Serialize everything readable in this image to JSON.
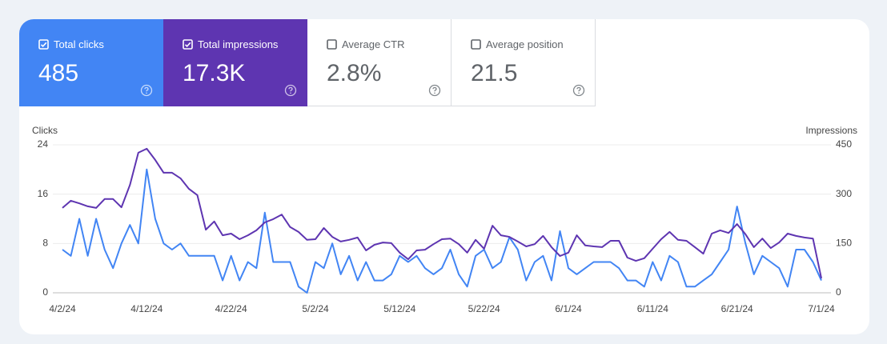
{
  "metrics": [
    {
      "label": "Total clicks",
      "value": "485",
      "checked": true,
      "color": "#4285f4"
    },
    {
      "label": "Total impressions",
      "value": "17.3K",
      "checked": true,
      "color": "#5e35b1"
    },
    {
      "label": "Average CTR",
      "value": "2.8%",
      "checked": false
    },
    {
      "label": "Average position",
      "value": "21.5",
      "checked": false
    }
  ],
  "chart_data": {
    "type": "line",
    "ylabel": "Clicks",
    "y2label": "Impressions",
    "categories": [
      "4/2/24",
      null,
      null,
      null,
      null,
      null,
      null,
      null,
      null,
      null,
      "4/12/24",
      null,
      null,
      null,
      null,
      null,
      null,
      null,
      null,
      null,
      "4/22/24",
      null,
      null,
      null,
      null,
      null,
      null,
      null,
      null,
      null,
      "5/2/24",
      null,
      null,
      null,
      null,
      null,
      null,
      null,
      null,
      null,
      "5/12/24",
      null,
      null,
      null,
      null,
      null,
      null,
      null,
      null,
      null,
      "5/22/24",
      null,
      null,
      null,
      null,
      null,
      null,
      null,
      null,
      null,
      "6/1/24",
      null,
      null,
      null,
      null,
      null,
      null,
      null,
      null,
      null,
      "6/11/24",
      null,
      null,
      null,
      null,
      null,
      null,
      null,
      null,
      null,
      "6/21/24",
      null,
      null,
      null,
      null,
      null,
      null,
      null,
      null,
      null,
      "7/1/24"
    ],
    "ylim": [
      0,
      24
    ],
    "yticks": [
      0,
      8,
      16,
      24
    ],
    "y2lim": [
      0,
      450
    ],
    "y2ticks": [
      0,
      150,
      300,
      450
    ],
    "grid": true,
    "series": [
      {
        "color": "#4285f4",
        "values": [
          7,
          6,
          12,
          6,
          12,
          7,
          4,
          8,
          11,
          8,
          20,
          12,
          8,
          7,
          8,
          6,
          6,
          6,
          6,
          2,
          6,
          2,
          5,
          4,
          13,
          5,
          5,
          5,
          1,
          0,
          5,
          4,
          8,
          3,
          6,
          2,
          5,
          2,
          2,
          3,
          6,
          5,
          6,
          4,
          3,
          4,
          7,
          3,
          1,
          6,
          7,
          4,
          5,
          9,
          7,
          2,
          5,
          6,
          2,
          10,
          4,
          3,
          4,
          5,
          5,
          5,
          4,
          2,
          2,
          1,
          5,
          2,
          6,
          5,
          1,
          1,
          2,
          3,
          5,
          7,
          14,
          8,
          3,
          6,
          5,
          4,
          1,
          7,
          7,
          5,
          2
        ]
      },
      {
        "color": "#5e35b1",
        "axis": "y2",
        "values": [
          258,
          280,
          272,
          263,
          258,
          285,
          285,
          260,
          328,
          426,
          438,
          404,
          365,
          365,
          348,
          316,
          297,
          192,
          217,
          175,
          180,
          163,
          175,
          190,
          214,
          224,
          238,
          200,
          185,
          161,
          163,
          197,
          170,
          156,
          161,
          168,
          129,
          146,
          153,
          151,
          122,
          102,
          129,
          131,
          148,
          163,
          165,
          148,
          122,
          161,
          134,
          204,
          175,
          170,
          156,
          141,
          148,
          173,
          139,
          112,
          122,
          175,
          144,
          141,
          139,
          158,
          158,
          107,
          97,
          105,
          134,
          163,
          185,
          161,
          158,
          139,
          119,
          180,
          190,
          182,
          209,
          178,
          139,
          165,
          136,
          153,
          180,
          173,
          168,
          165,
          44
        ]
      }
    ]
  }
}
